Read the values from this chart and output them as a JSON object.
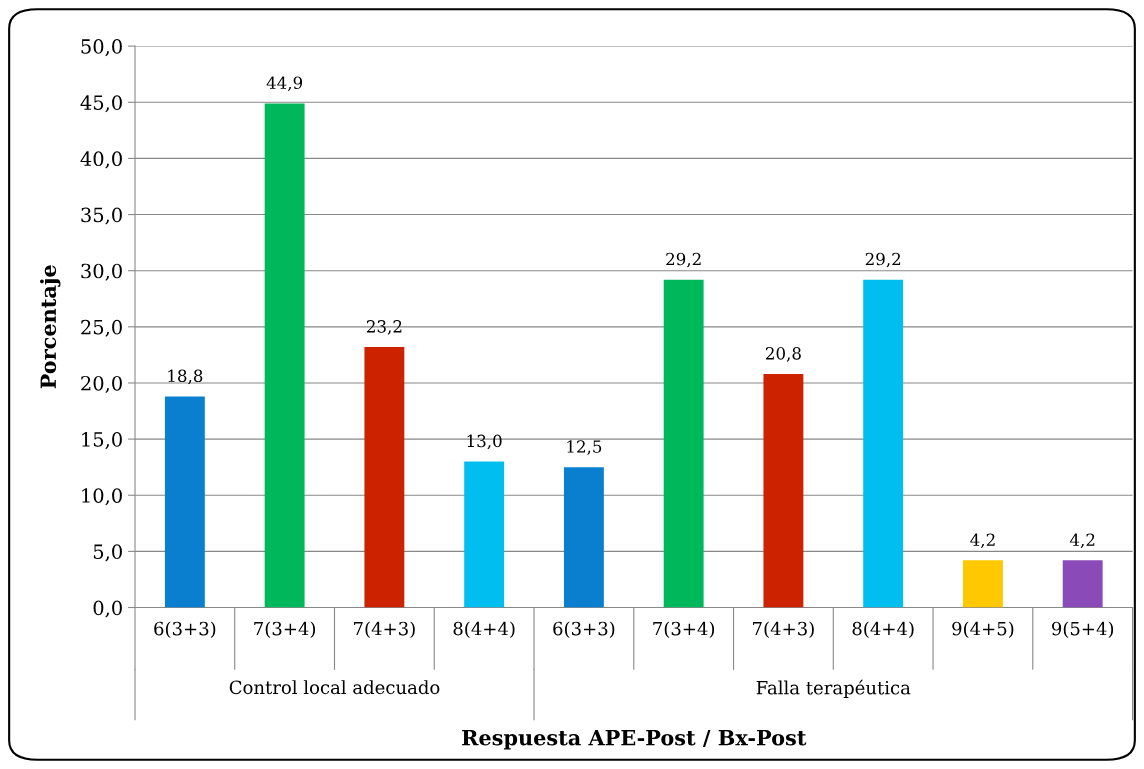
{
  "chart_data": {
    "type": "bar",
    "categories": [
      "6(3+3)",
      "7(3+4)",
      "7(4+3)",
      "8(4+4)",
      "6(3+3)",
      "7(3+4)",
      "7(4+3)",
      "8(4+4)",
      "9(4+5)",
      "9(5+4)"
    ],
    "values": [
      18.8,
      44.9,
      23.2,
      13.0,
      12.5,
      29.2,
      20.8,
      29.2,
      4.2,
      4.2
    ],
    "colors": [
      "#0a7fd0",
      "#00b85c",
      "#cc2200",
      "#00bff0",
      "#0a7fd0",
      "#00b85c",
      "#cc2200",
      "#00bff0",
      "#ffc800",
      "#8a4ab8"
    ],
    "value_labels": [
      "18,8",
      "44,9",
      "23,2",
      "13,0",
      "12,5",
      "29,2",
      "20,8",
      "29,2",
      "4,2",
      "4,2"
    ],
    "annotations": [
      "Control local adecuado",
      "Falla terapéutica"
    ],
    "xlabel": "Respuesta APE-Post / Bx-Post",
    "ylabel": "Porcentaje",
    "ylim": [
      0,
      50
    ],
    "yticks": [
      {
        "value": 0,
        "label": "0,0"
      },
      {
        "value": 5,
        "label": "5,0"
      },
      {
        "value": 10,
        "label": "10,0"
      },
      {
        "value": 15,
        "label": "15,0"
      },
      {
        "value": 20,
        "label": "20,0"
      },
      {
        "value": 25,
        "label": "25,0"
      },
      {
        "value": 30,
        "label": "30,0"
      },
      {
        "value": 35,
        "label": "35,0"
      },
      {
        "value": 40,
        "label": "40,0"
      },
      {
        "value": 45,
        "label": "45,0"
      },
      {
        "value": 50,
        "label": "50,0"
      }
    ],
    "grid": "y"
  }
}
